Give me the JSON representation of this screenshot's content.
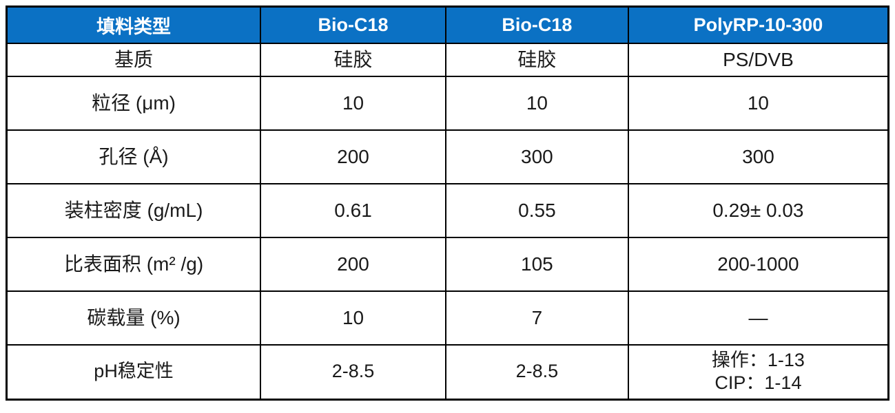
{
  "colors": {
    "header_bg": "#0b71c4",
    "header_text": "#ffffff",
    "border": "#000000",
    "cell_text": "#1a1a1a",
    "page_bg": "#ffffff"
  },
  "table": {
    "columns": [
      "填料类型",
      "Bio-C18",
      "Bio-C18",
      "PolyRP-10-300"
    ],
    "rows": [
      {
        "label": "基质",
        "values": [
          "硅胶",
          "硅胶",
          "PS/DVB"
        ]
      },
      {
        "label": "粒径 (μm)",
        "values": [
          "10",
          "10",
          "10"
        ]
      },
      {
        "label": "孔径 (Å)",
        "values": [
          "200",
          "300",
          "300"
        ]
      },
      {
        "label": "装柱密度 (g/mL)",
        "values": [
          "0.61",
          "0.55",
          "0.29± 0.03"
        ]
      },
      {
        "label": "比表面积 (m² /g)",
        "values": [
          "200",
          "105",
          "200-1000"
        ]
      },
      {
        "label": "碳载量 (%)",
        "values": [
          "10",
          "7",
          "—"
        ]
      },
      {
        "label": "pH稳定性",
        "values": [
          "2-8.5",
          "2-8.5",
          "操作：1-13\nCIP：1-14"
        ]
      }
    ]
  }
}
